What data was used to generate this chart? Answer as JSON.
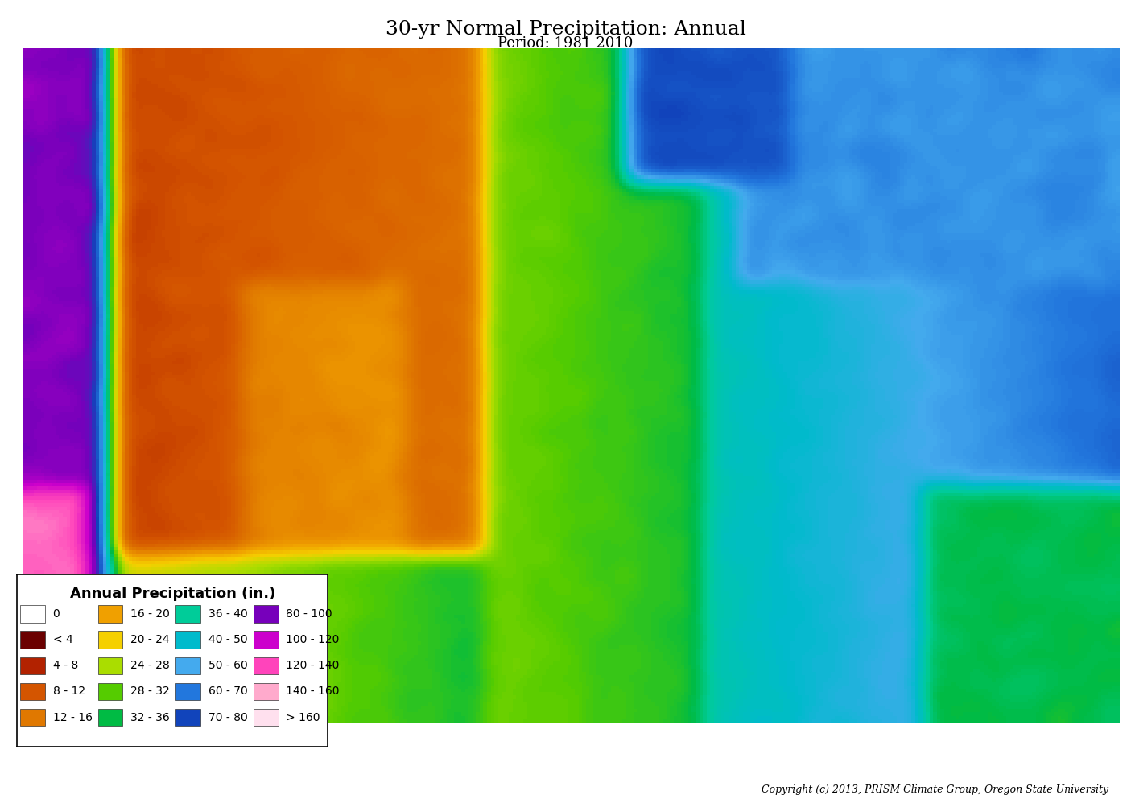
{
  "title": "30-yr Normal Precipitation: Annual",
  "subtitle": "Period: 1981-2010",
  "copyright": "Copyright (c) 2013, PRISM Climate Group, Oregon State University",
  "legend_title": "Annual Precipitation (in.)",
  "legend_items": [
    {
      "label": "0",
      "color": "#FFFFFF"
    },
    {
      "label": "< 4",
      "color": "#6B0000"
    },
    {
      "label": "4 - 8",
      "color": "#B22200"
    },
    {
      "label": "8 - 12",
      "color": "#D45500"
    },
    {
      "label": "12 - 16",
      "color": "#E07800"
    },
    {
      "label": "16 - 20",
      "color": "#F0A000"
    },
    {
      "label": "20 - 24",
      "color": "#F5D000"
    },
    {
      "label": "24 - 28",
      "color": "#AADD00"
    },
    {
      "label": "28 - 32",
      "color": "#55CC00"
    },
    {
      "label": "32 - 36",
      "color": "#00BB44"
    },
    {
      "label": "36 - 40",
      "color": "#00CC99"
    },
    {
      "label": "40 - 50",
      "color": "#00BBCC"
    },
    {
      "label": "50 - 60",
      "color": "#44AAEE"
    },
    {
      "label": "60 - 70",
      "color": "#2277DD"
    },
    {
      "label": "70 - 80",
      "color": "#1144BB"
    },
    {
      "label": "80 - 100",
      "color": "#7700BB"
    },
    {
      "label": "100 - 120",
      "color": "#CC00CC"
    },
    {
      "label": "120 - 140",
      "color": "#FF44BB"
    },
    {
      "label": "140 - 160",
      "color": "#FFAACC"
    },
    {
      "label": "> 160",
      "color": "#FFE0EE"
    }
  ],
  "legend_box_color": "#FFFFFF",
  "legend_border_color": "#000000",
  "background_color": "#FFFFFF",
  "title_fontsize": 18,
  "subtitle_fontsize": 13,
  "legend_title_fontsize": 13,
  "legend_item_fontsize": 11,
  "copyright_fontsize": 9
}
